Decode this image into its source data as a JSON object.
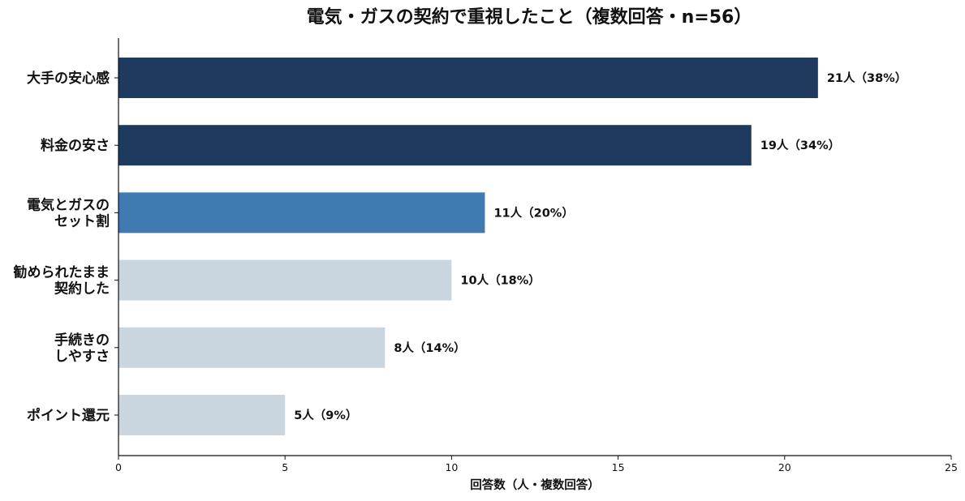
{
  "chart_data": {
    "type": "bar",
    "orientation": "horizontal",
    "title": "電気・ガスの契約で重視したこと（複数回答・n=56）",
    "xlabel": "回答数（人・複数回答）",
    "ylabel": "",
    "xlim": [
      0,
      25
    ],
    "xticks": [
      0,
      5,
      10,
      15,
      20,
      25
    ],
    "grid": false,
    "categories": [
      [
        "大手の安心感"
      ],
      [
        "料金の安さ"
      ],
      [
        "電気とガスの",
        "セット割"
      ],
      [
        "勧められたまま",
        "契約した"
      ],
      [
        "手続きの",
        "しやすさ"
      ],
      [
        "ポイント還元"
      ]
    ],
    "values": [
      21,
      19,
      11,
      10,
      8,
      5
    ],
    "value_labels": [
      "21人（38%）",
      "19人（34%）",
      "11人（20%）",
      "10人（18%）",
      "8人（14%）",
      "5人（9%）"
    ],
    "colors": [
      "#1f3a5f",
      "#1f3a5f",
      "#3f7bb0",
      "#c9d6df",
      "#c9d6df",
      "#c9d6df"
    ]
  }
}
